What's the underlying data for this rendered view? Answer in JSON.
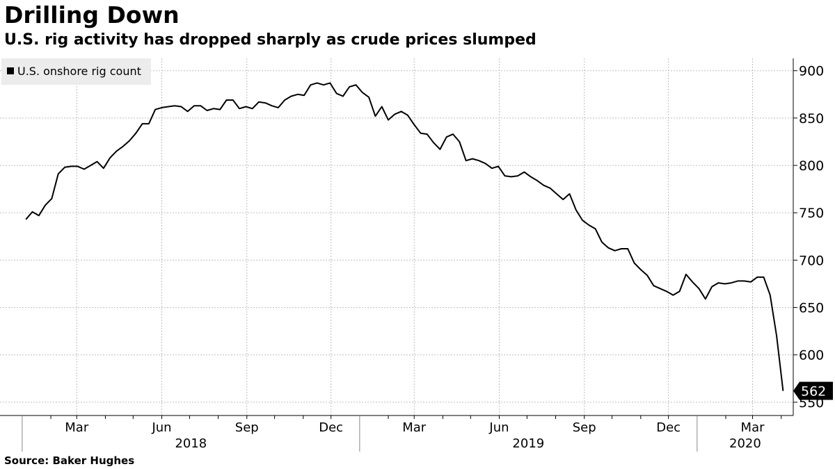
{
  "header": {
    "title": "Drilling Down",
    "subtitle": "U.S. rig activity has dropped sharply as crude prices slumped"
  },
  "footer": {
    "source": "Source: Baker Hughes"
  },
  "colors": {
    "line": "#000000",
    "grid": "#bdbdbd",
    "legend_bg": "#ececec",
    "last_label_bg": "#000000"
  },
  "chart_data": {
    "type": "line",
    "series": [
      {
        "name": "U.S. onshore rig count",
        "start": "2018-01-05",
        "interval_days": 7,
        "values": [
          743,
          751,
          747,
          758,
          765,
          791,
          798,
          799,
          799,
          796,
          800,
          804,
          797,
          808,
          815,
          820,
          826,
          834,
          844,
          844,
          859,
          861,
          862,
          863,
          862,
          857,
          863,
          863,
          858,
          860,
          859,
          869,
          869,
          860,
          862,
          860,
          867,
          866,
          863,
          861,
          869,
          873,
          875,
          874,
          885,
          887,
          885,
          887,
          876,
          873,
          883,
          885,
          877,
          872,
          852,
          862,
          848,
          854,
          857,
          853,
          843,
          834,
          833,
          824,
          817,
          830,
          833,
          825,
          805,
          807,
          805,
          802,
          797,
          799,
          789,
          788,
          789,
          793,
          788,
          784,
          779,
          776,
          770,
          764,
          770,
          753,
          742,
          737,
          733,
          719,
          713,
          710,
          712,
          712,
          697,
          690,
          684,
          673,
          670,
          667,
          663,
          667,
          685,
          677,
          670,
          659,
          672,
          676,
          675,
          676,
          678,
          678,
          677,
          682,
          682,
          663,
          620,
          562
        ]
      }
    ],
    "ylim": [
      536,
      913
    ],
    "yticks": [
      550,
      600,
      650,
      700,
      750,
      800,
      850,
      900
    ],
    "month_labels": [
      {
        "label": "Mar",
        "date": "2018-03-01"
      },
      {
        "label": "Jun",
        "date": "2018-06-01"
      },
      {
        "label": "Sep",
        "date": "2018-09-01"
      },
      {
        "label": "Dec",
        "date": "2018-12-01"
      },
      {
        "label": "Mar",
        "date": "2019-03-01"
      },
      {
        "label": "Jun",
        "date": "2019-06-01"
      },
      {
        "label": "Sep",
        "date": "2019-09-01"
      },
      {
        "label": "Dec",
        "date": "2019-12-01"
      },
      {
        "label": "Mar",
        "date": "2020-03-01"
      }
    ],
    "year_labels": [
      {
        "label": "2018"
      },
      {
        "label": "2019"
      },
      {
        "label": "2020"
      }
    ],
    "last_value_label": "562",
    "legend_position": "top-left",
    "grid": true
  }
}
